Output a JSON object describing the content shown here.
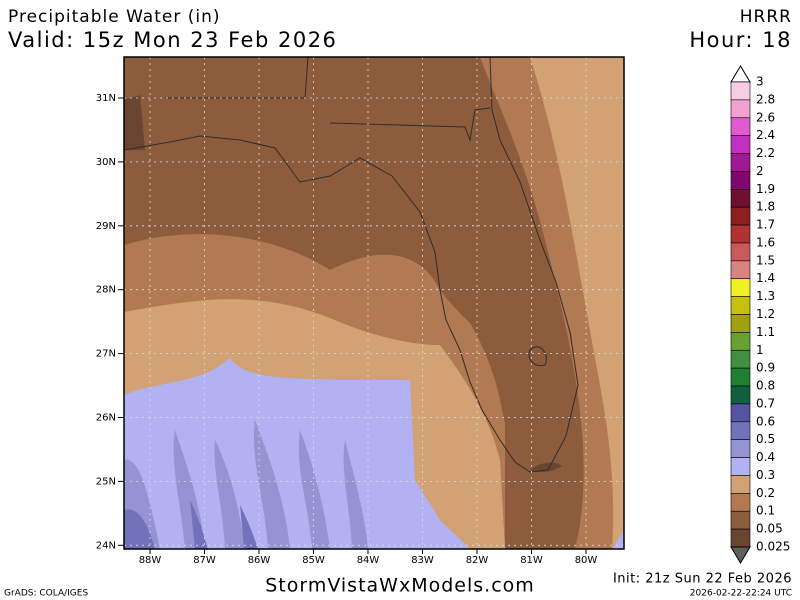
{
  "header": {
    "title": "Precipitable Water (in)",
    "valid": "Valid: 15z Mon 23 Feb 2026",
    "model": "HRRR",
    "hour": "Hour: 18"
  },
  "map": {
    "lat_labels": [
      "31N",
      "30N",
      "29N",
      "28N",
      "27N",
      "26N",
      "25N",
      "24N"
    ],
    "lon_labels": [
      "88W",
      "87W",
      "86W",
      "85W",
      "84W",
      "83W",
      "82W",
      "81W",
      "80W"
    ]
  },
  "colorbar": {
    "labels": [
      "3",
      "2.8",
      "2.6",
      "2.4",
      "2.2",
      "2",
      "1.9",
      "1.8",
      "1.7",
      "1.6",
      "1.5",
      "1.4",
      "1.3",
      "1.2",
      "1.1",
      "1",
      "0.9",
      "0.8",
      "0.7",
      "0.6",
      "0.5",
      "0.4",
      "0.3",
      "0.2",
      "0.1",
      "0.05",
      "0.025"
    ],
    "top_color": "#ffffff",
    "bottom_color": "#5e5e5e",
    "colors": [
      "#f8cce2",
      "#f2a2d2",
      "#e25ad2",
      "#c230c0",
      "#a01892",
      "#7e0870",
      "#6e1030",
      "#8c2020",
      "#b03232",
      "#c85a5a",
      "#d88282",
      "#f2f222",
      "#c8c010",
      "#a0a012",
      "#68a032",
      "#409040",
      "#208032",
      "#106040",
      "#5454a2",
      "#7272ba",
      "#9494d2",
      "#b2b2f2",
      "#d2a274",
      "#b27a52",
      "#8c5c3c",
      "#6a4530"
    ]
  },
  "footer": {
    "credit": "GrADS: COLA/IGES",
    "site": "StormVistaWxModels.com",
    "init": "Init: 21z Sun 22 Feb 2026",
    "timestamp": "2026-02-22-22:24 UTC"
  }
}
